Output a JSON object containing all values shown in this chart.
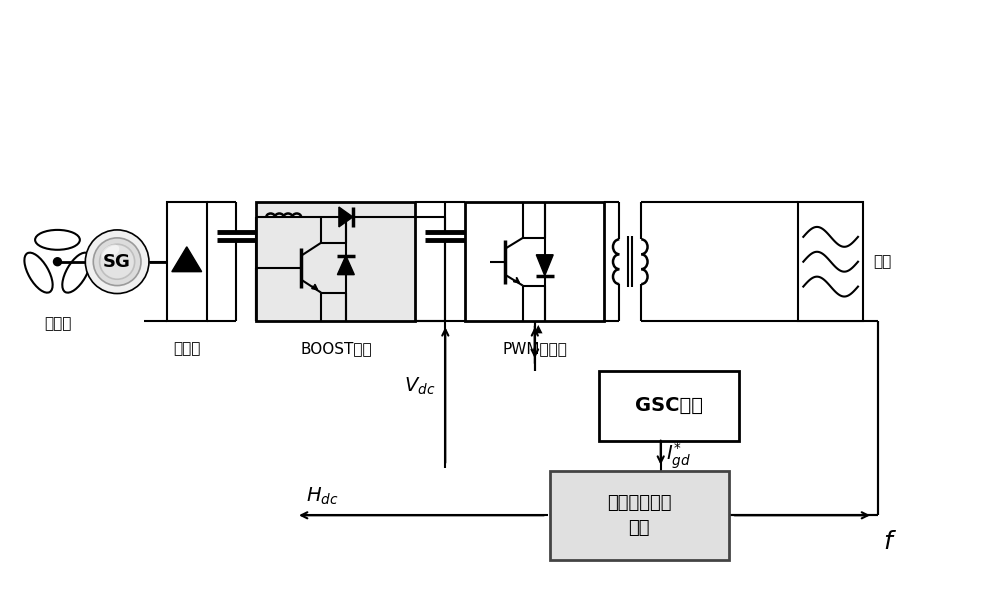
{
  "bg_color": "#ffffff",
  "line_color": "#000000",
  "figsize": [
    10.0,
    6.03
  ],
  "dpi": 100,
  "labels": {
    "fenglijie": "风力机",
    "zhengliu": "整流器",
    "boost": "BOOST电路",
    "pwm": "PWM逆变器",
    "sg": "SG",
    "diangwang": "电网",
    "gsc": "GSC控制",
    "zhiliu": "直流电容惧性\n控制",
    "Vdc": "$V_{dc}$",
    "Igd": "$I^{*}_{gd}$",
    "Hdc": "$H_{dc}$",
    "f": "$f$"
  }
}
